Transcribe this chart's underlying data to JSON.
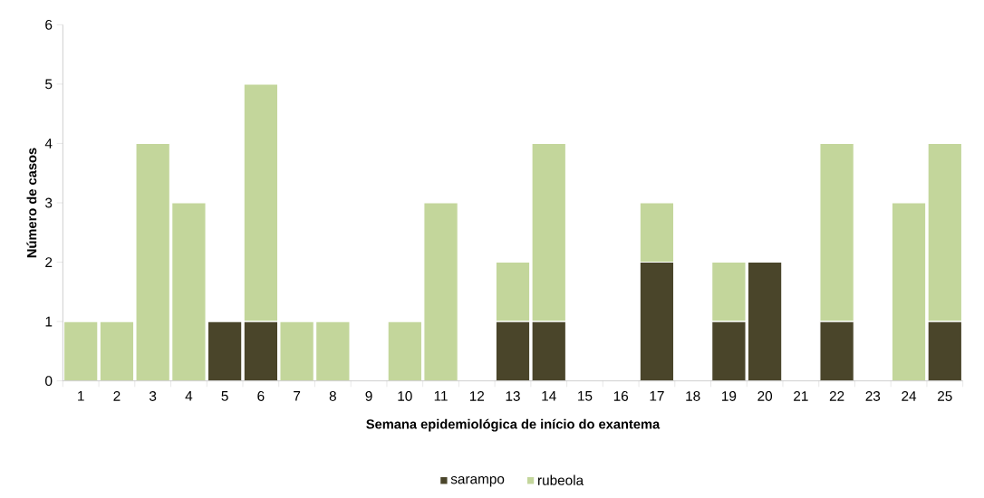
{
  "chart_data": {
    "type": "bar",
    "stacked": true,
    "xlabel": "Semana epidemiológica de início do exantema",
    "ylabel": "Número de casos",
    "categories": [
      "1",
      "2",
      "3",
      "4",
      "5",
      "6",
      "7",
      "8",
      "9",
      "10",
      "11",
      "12",
      "13",
      "14",
      "15",
      "16",
      "17",
      "18",
      "19",
      "20",
      "21",
      "22",
      "23",
      "24",
      "25"
    ],
    "series": [
      {
        "name": "sarampo",
        "color": "#4a452a",
        "values": [
          0,
          0,
          0,
          0,
          1,
          1,
          0,
          0,
          0,
          0,
          0,
          0,
          1,
          1,
          0,
          0,
          2,
          0,
          1,
          2,
          0,
          1,
          0,
          0,
          1
        ]
      },
      {
        "name": "rubeola",
        "color": "#c3d69b",
        "values": [
          1,
          1,
          4,
          3,
          0,
          4,
          1,
          1,
          0,
          1,
          3,
          0,
          1,
          3,
          0,
          0,
          1,
          0,
          1,
          0,
          0,
          3,
          0,
          3,
          3
        ]
      }
    ],
    "ylim": [
      0,
      6
    ],
    "yticks": [
      0,
      1,
      2,
      3,
      4,
      5,
      6
    ],
    "grid": false,
    "legend": "bottom"
  }
}
